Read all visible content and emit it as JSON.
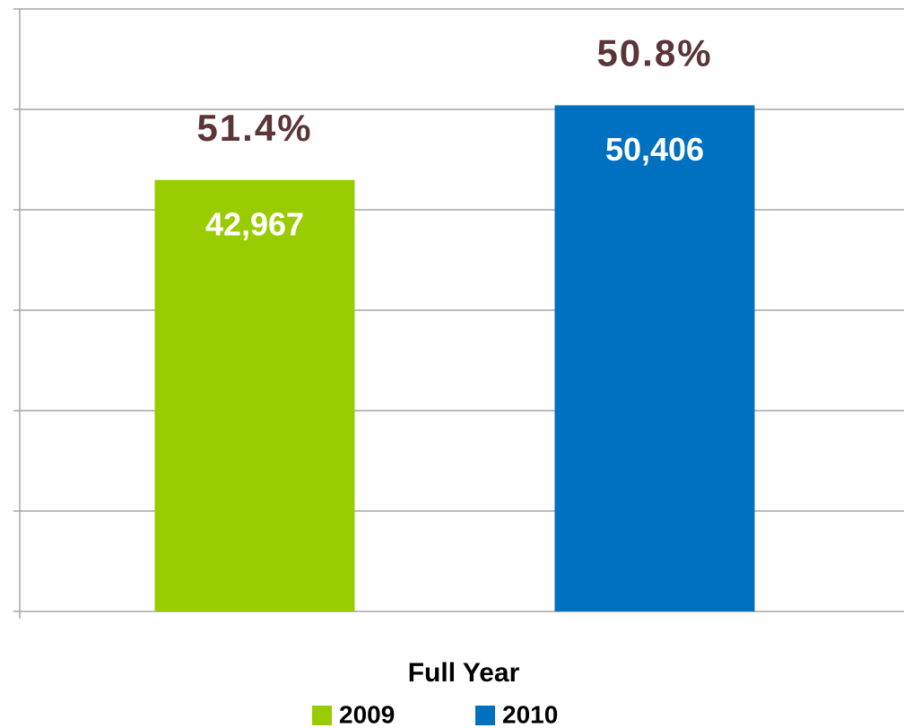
{
  "chart_data": {
    "type": "bar",
    "categories": [
      "Full Year"
    ],
    "series": [
      {
        "name": "2009",
        "color": "#99cc00",
        "values": [
          42967
        ],
        "value_labels": [
          "42,967"
        ],
        "annotations": [
          "51.4%"
        ]
      },
      {
        "name": "2010",
        "color": "#0070c0",
        "values": [
          50406
        ],
        "value_labels": [
          "50,406"
        ],
        "annotations": [
          "50.8%"
        ]
      }
    ],
    "ylim": [
      0,
      60000
    ],
    "yticks": [
      0,
      10000,
      20000,
      30000,
      40000,
      50000,
      60000
    ],
    "grid": true
  }
}
